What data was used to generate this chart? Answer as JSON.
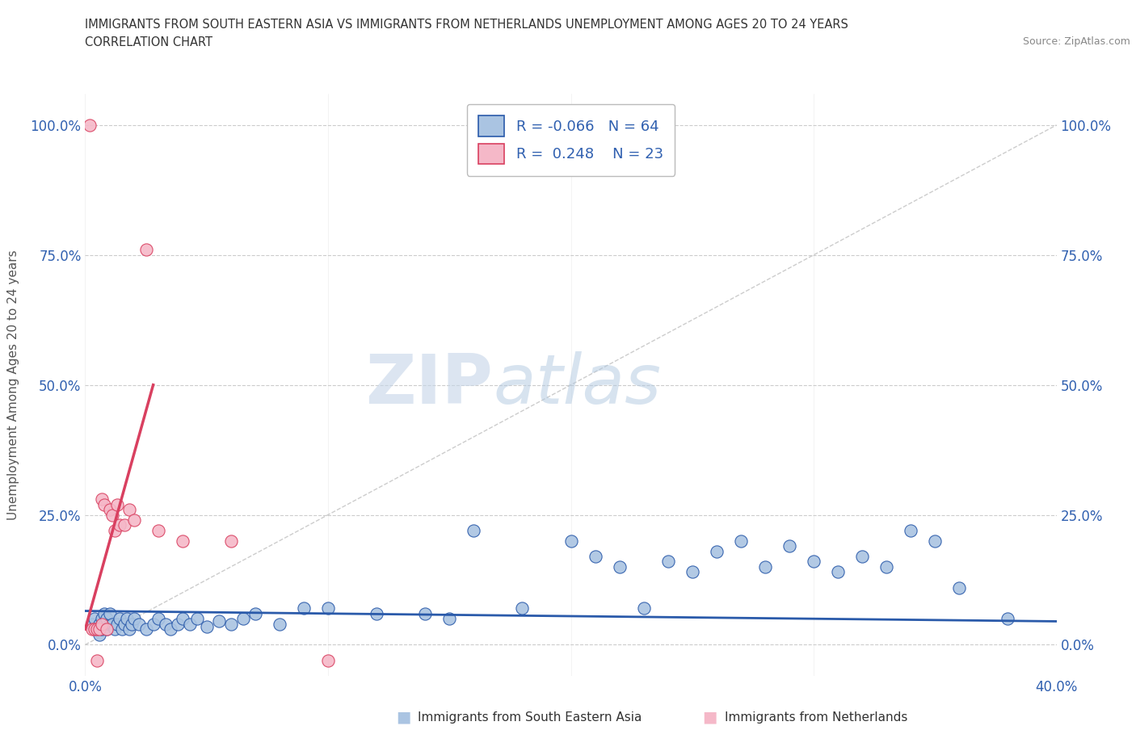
{
  "title_line1": "IMMIGRANTS FROM SOUTH EASTERN ASIA VS IMMIGRANTS FROM NETHERLANDS UNEMPLOYMENT AMONG AGES 20 TO 24 YEARS",
  "title_line2": "CORRELATION CHART",
  "source_text": "Source: ZipAtlas.com",
  "ylabel": "Unemployment Among Ages 20 to 24 years",
  "xmin": 0.0,
  "xmax": 0.4,
  "ymin": -0.06,
  "ymax": 1.06,
  "yticks": [
    0.0,
    0.25,
    0.5,
    0.75,
    1.0
  ],
  "ytick_labels": [
    "0.0%",
    "25.0%",
    "50.0%",
    "75.0%",
    "100.0%"
  ],
  "xticks": [
    0.0,
    0.1,
    0.2,
    0.3,
    0.4
  ],
  "watermark_zip": "ZIP",
  "watermark_atlas": "atlas",
  "blue_color": "#aac4e2",
  "pink_color": "#f5b8c8",
  "blue_line_color": "#2a5aaa",
  "pink_line_color": "#d94060",
  "grid_color": "#cccccc",
  "legend_R_blue": "-0.066",
  "legend_N_blue": "64",
  "legend_R_pink": "0.248",
  "legend_N_pink": "23",
  "blue_scatter_x": [
    0.003,
    0.004,
    0.005,
    0.006,
    0.006,
    0.007,
    0.007,
    0.008,
    0.008,
    0.009,
    0.009,
    0.01,
    0.01,
    0.011,
    0.012,
    0.013,
    0.014,
    0.015,
    0.016,
    0.017,
    0.018,
    0.019,
    0.02,
    0.022,
    0.025,
    0.028,
    0.03,
    0.033,
    0.035,
    0.038,
    0.04,
    0.043,
    0.046,
    0.05,
    0.055,
    0.06,
    0.065,
    0.07,
    0.08,
    0.09,
    0.1,
    0.12,
    0.14,
    0.15,
    0.16,
    0.18,
    0.2,
    0.21,
    0.22,
    0.23,
    0.24,
    0.25,
    0.26,
    0.27,
    0.28,
    0.29,
    0.3,
    0.31,
    0.32,
    0.33,
    0.34,
    0.35,
    0.36,
    0.38
  ],
  "blue_scatter_y": [
    0.04,
    0.05,
    0.03,
    0.02,
    0.04,
    0.03,
    0.05,
    0.04,
    0.06,
    0.03,
    0.05,
    0.04,
    0.06,
    0.04,
    0.03,
    0.04,
    0.05,
    0.03,
    0.04,
    0.05,
    0.03,
    0.04,
    0.05,
    0.04,
    0.03,
    0.04,
    0.05,
    0.04,
    0.03,
    0.04,
    0.05,
    0.04,
    0.05,
    0.035,
    0.045,
    0.04,
    0.05,
    0.06,
    0.04,
    0.07,
    0.07,
    0.06,
    0.06,
    0.05,
    0.22,
    0.07,
    0.2,
    0.17,
    0.15,
    0.07,
    0.16,
    0.14,
    0.18,
    0.2,
    0.15,
    0.19,
    0.16,
    0.14,
    0.17,
    0.15,
    0.22,
    0.2,
    0.11,
    0.05
  ],
  "pink_scatter_x": [
    0.002,
    0.003,
    0.004,
    0.005,
    0.005,
    0.006,
    0.007,
    0.007,
    0.008,
    0.009,
    0.01,
    0.011,
    0.012,
    0.013,
    0.014,
    0.016,
    0.018,
    0.02,
    0.025,
    0.03,
    0.04,
    0.06,
    0.1
  ],
  "pink_scatter_y": [
    1.0,
    0.03,
    0.03,
    0.03,
    -0.03,
    0.03,
    0.28,
    0.04,
    0.27,
    0.03,
    0.26,
    0.25,
    0.22,
    0.27,
    0.23,
    0.23,
    0.26,
    0.24,
    0.76,
    0.22,
    0.2,
    0.2,
    -0.03
  ],
  "blue_trendline_x": [
    0.0,
    0.4
  ],
  "blue_trendline_y": [
    0.065,
    0.045
  ],
  "pink_trendline_x": [
    0.0,
    0.028
  ],
  "pink_trendline_y": [
    0.03,
    0.5
  ],
  "diag_line_x": [
    0.0,
    0.4
  ],
  "diag_line_y": [
    0.0,
    1.0
  ]
}
